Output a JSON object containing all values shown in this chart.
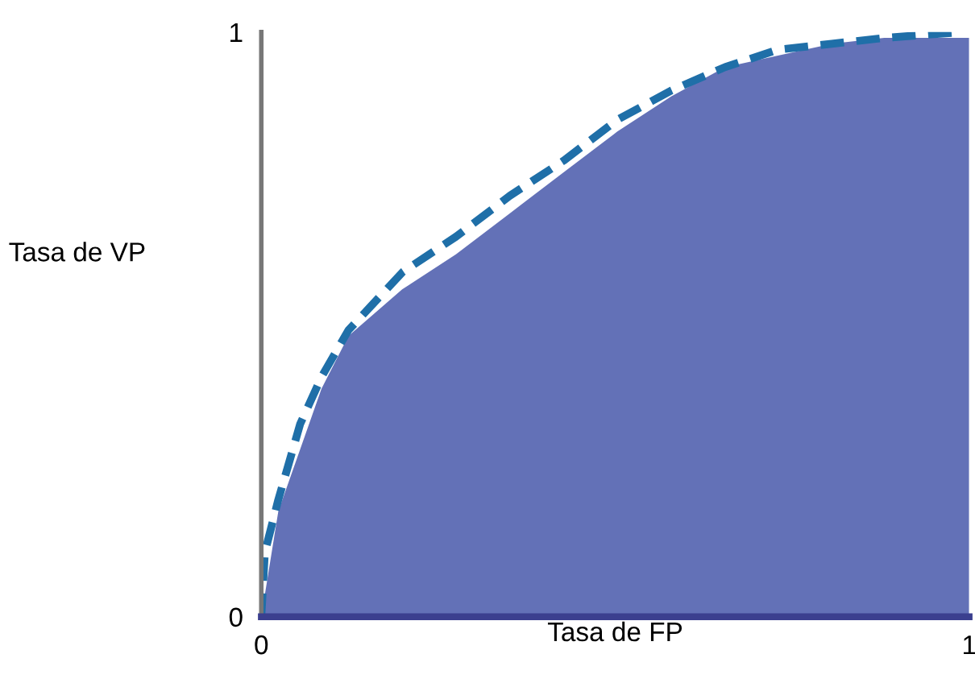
{
  "chart_data": {
    "type": "area",
    "xlabel": "Tasa de FP",
    "ylabel": "Tasa de VP",
    "xlim": [
      0,
      1
    ],
    "ylim": [
      0,
      1
    ],
    "xticks": [
      0,
      1
    ],
    "yticks": [
      0,
      1
    ],
    "grid": false,
    "legend": false,
    "series": [
      {
        "color": "#5b69b3",
        "x": [
          0,
          0.024,
          0.085,
          0.123,
          0.199,
          0.275,
          0.351,
          0.427,
          0.503,
          0.579,
          0.655,
          0.73,
          0.806,
          0.88,
          1
        ],
        "values": [
          0,
          0.18,
          0.39,
          0.48,
          0.56,
          0.62,
          0.69,
          0.76,
          0.83,
          0.89,
          0.94,
          0.96,
          0.98,
          0.99,
          0.99
        ]
      },
      {
        "type": "line",
        "line_style": "dashed",
        "color": "#1f6fa8",
        "x": [
          0,
          0.005,
          0.024,
          0.055,
          0.085,
          0.123,
          0.2,
          0.275,
          0.351,
          0.427,
          0.503,
          0.579,
          0.655,
          0.73,
          0.806,
          0.88,
          0.99
        ],
        "values": [
          0,
          0.11,
          0.2,
          0.33,
          0.41,
          0.49,
          0.59,
          0.65,
          0.72,
          0.78,
          0.85,
          0.9,
          0.94,
          0.97,
          0.98,
          0.99,
          1.0
        ]
      }
    ]
  }
}
